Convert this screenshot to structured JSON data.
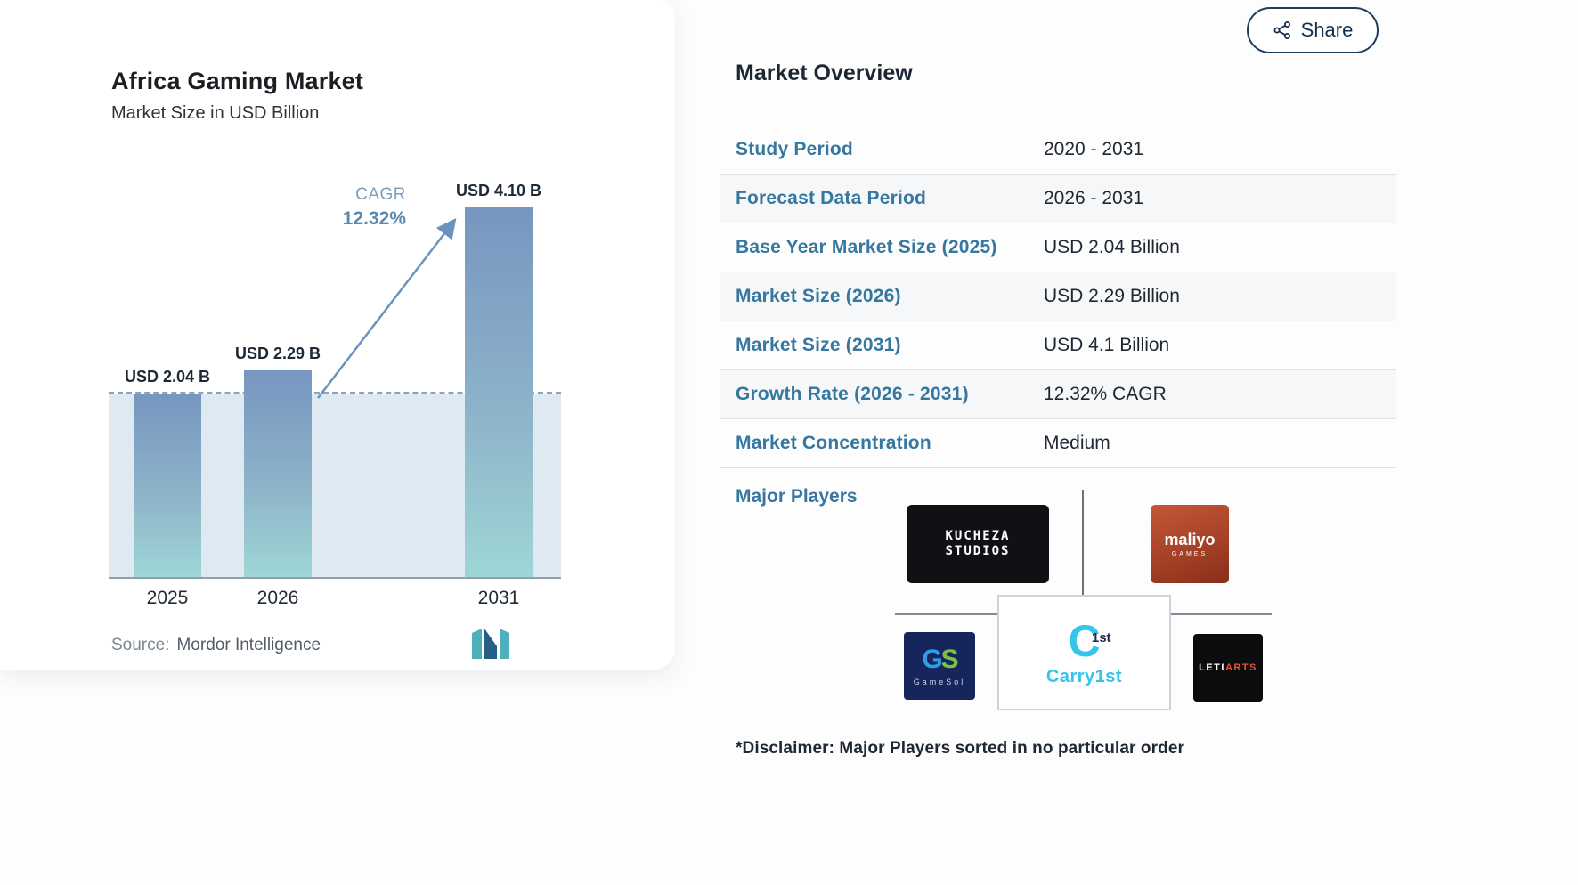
{
  "header": {
    "share_label": "Share"
  },
  "chart": {
    "title": "Africa Gaming Market",
    "subtitle": "Market Size in USD Billion",
    "cagr_label": "CAGR",
    "cagr_value": "12.32%",
    "source_label": "Source:",
    "source_value": "Mordor Intelligence"
  },
  "chart_data": {
    "type": "bar",
    "title": "Africa Gaming Market",
    "ylabel": "Market Size in USD Billion",
    "categories": [
      "2025",
      "2026",
      "2031"
    ],
    "values": [
      2.04,
      2.29,
      4.1
    ],
    "value_labels": [
      "USD 2.04 B",
      "USD 2.29 B",
      "USD 4.10 B"
    ],
    "baseline_value": 2.04,
    "annotation": "CAGR 12.32% (2026 - 2031)",
    "ylim": [
      0,
      4.1
    ],
    "grid": false,
    "legend": false
  },
  "overview": {
    "title": "Market Overview",
    "rows": [
      {
        "label": "Study Period",
        "value": "2020 - 2031"
      },
      {
        "label": "Forecast Data Period",
        "value": "2026 - 2031"
      },
      {
        "label": "Base Year Market Size (2025)",
        "value": "USD 2.04 Billion"
      },
      {
        "label": "Market Size (2026)",
        "value": "USD 2.29 Billion"
      },
      {
        "label": "Market Size (2031)",
        "value": "USD 4.1 Billion"
      },
      {
        "label": "Growth Rate (2026 - 2031)",
        "value": "12.32% CAGR"
      },
      {
        "label": "Market Concentration",
        "value": "Medium"
      }
    ],
    "major_players_label": "Major Players",
    "players": {
      "kucheza": {
        "line1": "KUCHEZA",
        "line2": "STUDIOS"
      },
      "maliyo": {
        "name": "maliyo",
        "sub": "GAMES"
      },
      "gamesol": {
        "g": "G",
        "s": "S",
        "name": "GameSol"
      },
      "carry1st": {
        "mark": "C",
        "badge": "1st",
        "name": "Carry1st"
      },
      "letiarts": {
        "left": "LETI",
        "right": "ARTS"
      }
    },
    "disclaimer": "*Disclaimer: Major Players sorted in no particular order"
  },
  "colors": {
    "accent_blue": "#35779F",
    "navy": "#14304D",
    "bar_top": "#7796C0",
    "bar_bottom": "#9ED6D6",
    "shade": "#DFE9F2",
    "carry1st_cyan": "#35C4EA",
    "leti_orange": "#E8542E",
    "maliyo_red": "#C65737"
  }
}
